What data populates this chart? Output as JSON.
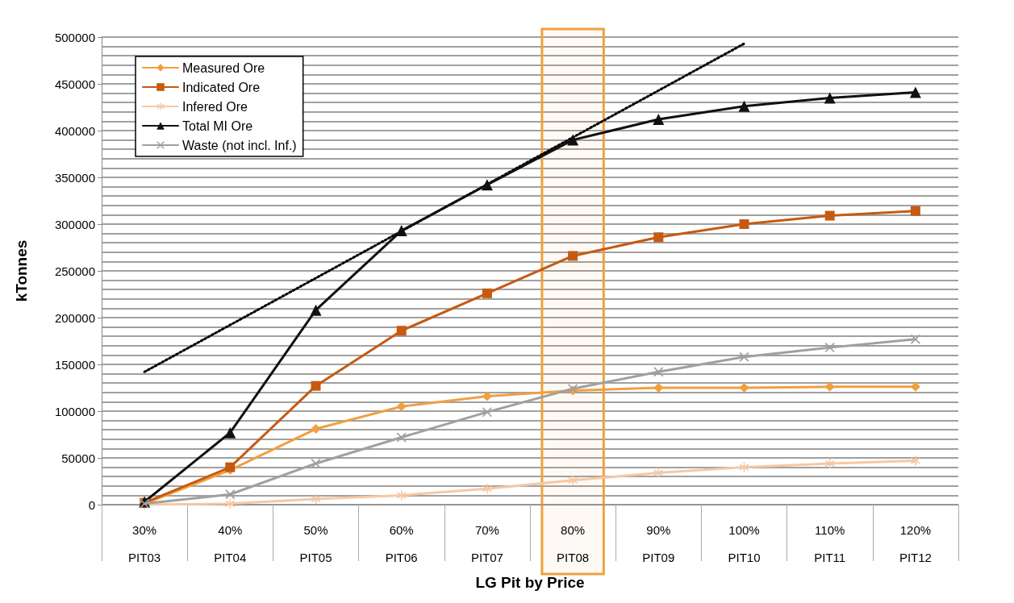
{
  "chart_data": {
    "type": "line",
    "xlabel": "LG Pit by Price",
    "ylabel": "kTonnes",
    "categories": [
      "30%\nPIT03",
      "40%\nPIT04",
      "50%\nPIT05",
      "60%\nPIT06",
      "70%\nPIT07",
      "80%\nPIT08",
      "90%\nPIT09",
      "100%\nPIT10",
      "110%\nPIT11",
      "120%\nPIT12"
    ],
    "series": [
      {
        "name": "Measured Ore",
        "color": "#f0a040",
        "marker": "diamond",
        "values": [
          1000,
          37000,
          81000,
          105000,
          116000,
          122000,
          125000,
          125000,
          126000,
          126000
        ]
      },
      {
        "name": "Indicated Ore",
        "color": "#c55a11",
        "marker": "square",
        "values": [
          2000,
          40000,
          127000,
          186000,
          226000,
          266000,
          286000,
          300000,
          309000,
          314000
        ]
      },
      {
        "name": "Infered Ore",
        "color": "#f5c8a5",
        "marker": "star",
        "values": [
          0,
          1000,
          6000,
          10000,
          17000,
          26000,
          34000,
          40000,
          44000,
          47000
        ]
      },
      {
        "name": "Total MI Ore",
        "color": "#111111",
        "marker": "triangle",
        "values": [
          3000,
          77000,
          208000,
          293000,
          342000,
          390000,
          412000,
          426000,
          435000,
          441000
        ]
      },
      {
        "name": "Waste (not incl. Inf.)",
        "color": "#a0a0a0",
        "marker": "cross",
        "values": [
          1000,
          11000,
          44000,
          72000,
          99000,
          124000,
          142000,
          158000,
          168000,
          177000
        ]
      },
      {
        "type": "line",
        "color": "#000000",
        "marker": "none",
        "line_style": "dotted",
        "x": [
          "30%\nPIT03",
          "100%\nPIT10"
        ],
        "values": [
          142000,
          493000
        ]
      }
    ],
    "bands": [
      {
        "axis": "x",
        "from": "80%\nPIT08",
        "to": "80%\nPIT08",
        "color": "#f0a040"
      }
    ],
    "ylim": [
      0,
      500000
    ],
    "yticks": [
      0,
      50000,
      100000,
      150000,
      200000,
      250000,
      300000,
      350000,
      400000,
      450000,
      500000
    ],
    "grid": "y",
    "legend": "top left"
  }
}
